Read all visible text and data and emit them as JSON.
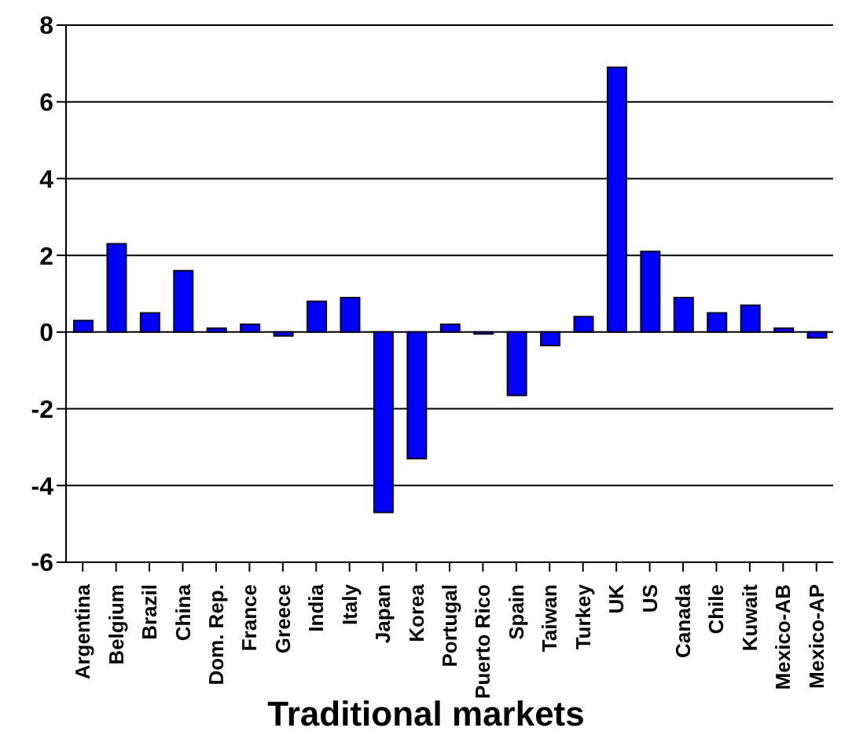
{
  "chart_data": {
    "type": "bar",
    "title": "Traditional markets",
    "categories": [
      "Argentina",
      "Belgium",
      "Brazil",
      "China",
      "Dom. Rep.",
      "France",
      "Greece",
      "India",
      "Italy",
      "Japan",
      "Korea",
      "Portugal",
      "Puerto Rico",
      "Spain",
      "Taiwan",
      "Turkey",
      "UK",
      "US",
      "Canada",
      "Chile",
      "Kuwait",
      "Mexico-AB",
      "Mexico-AP"
    ],
    "values": [
      0.3,
      2.3,
      0.5,
      1.6,
      0.1,
      0.2,
      -0.1,
      0.8,
      0.9,
      -4.7,
      -3.3,
      0.2,
      -0.05,
      -1.65,
      -0.35,
      0.4,
      6.9,
      2.1,
      0.9,
      0.5,
      0.7,
      0.1,
      -0.15
    ],
    "color": "#0000ff",
    "ylim": [
      -6,
      8
    ],
    "yticks": [
      -6,
      -4,
      -2,
      0,
      2,
      4,
      6,
      8
    ],
    "grid": "y"
  }
}
